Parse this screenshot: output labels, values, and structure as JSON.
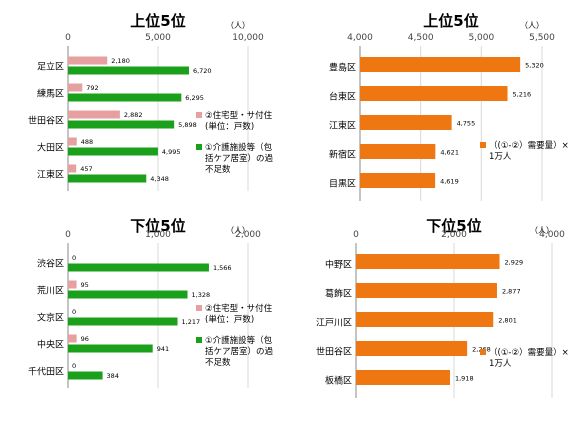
{
  "chart_data": [
    {
      "id": "tl",
      "type": "bar",
      "orientation": "horizontal",
      "title": "上位5位",
      "unit": "（人）",
      "ticks": [
        "0",
        "5,000",
        "10,000"
      ],
      "xlim": [
        0,
        10000
      ],
      "categories": [
        "足立区",
        "練馬区",
        "世田谷区",
        "大田区",
        "江東区"
      ],
      "series": [
        {
          "name": "②住宅型・サ付住(単位：戸数)",
          "color": "#e6a0a0",
          "values": [
            2180,
            792,
            2882,
            488,
            457
          ],
          "labels": [
            "2,180",
            "792",
            "2,882",
            "488",
            "457"
          ]
        },
        {
          "name": "①介護施設等（包括ケア居室）の過不足数",
          "color": "#1aa01a",
          "values": [
            6720,
            6295,
            5898,
            4995,
            4348
          ],
          "labels": [
            "6,720",
            "6,295",
            "5,898",
            "4,995",
            "4,348"
          ]
        }
      ],
      "legend_position": "right"
    },
    {
      "id": "tr",
      "type": "bar",
      "orientation": "horizontal",
      "title": "上位5位",
      "unit": "（人）",
      "ticks": [
        "4,000",
        "4,500",
        "5,000",
        "5,500"
      ],
      "xlim": [
        4000,
        5500
      ],
      "categories": [
        "豊島区",
        "台東区",
        "江東区",
        "新宿区",
        "目黒区"
      ],
      "series": [
        {
          "name": "（(①-②）需要量）×1万人",
          "color": "#ee7711",
          "values": [
            5320,
            5216,
            4755,
            4621,
            4619
          ],
          "labels": [
            "5,320",
            "5,216",
            "4,755",
            "4,621",
            "4,619"
          ]
        }
      ],
      "legend_position": "right"
    },
    {
      "id": "bl",
      "type": "bar",
      "orientation": "horizontal",
      "title": "下位5位",
      "unit": "（人）",
      "ticks": [
        "0",
        "1,000",
        "2,000"
      ],
      "xlim": [
        0,
        2000
      ],
      "categories": [
        "渋谷区",
        "荒川区",
        "文京区",
        "中央区",
        "千代田区"
      ],
      "series": [
        {
          "name": "②住宅型・サ付住(単位：戸数)",
          "color": "#e6a0a0",
          "values": [
            0,
            95,
            0,
            96,
            0
          ],
          "labels": [
            "0",
            "95",
            "0",
            "96",
            "0"
          ]
        },
        {
          "name": "①介護施設等（包括ケア居室）の過不足数",
          "color": "#1aa01a",
          "values": [
            1566,
            1328,
            1217,
            941,
            384
          ],
          "labels": [
            "1,566",
            "1,328",
            "1,217",
            "941",
            "384"
          ]
        }
      ],
      "legend_position": "right"
    },
    {
      "id": "br",
      "type": "bar",
      "orientation": "horizontal",
      "title": "下位5位",
      "unit": "（人）",
      "ticks": [
        "0",
        "2,000",
        "4,000"
      ],
      "xlim": [
        0,
        4000
      ],
      "categories": [
        "中野区",
        "葛飾区",
        "江戸川区",
        "世田谷区",
        "板橋区"
      ],
      "series": [
        {
          "name": "（(①-②）需要量）×1万人",
          "color": "#ee7711",
          "values": [
            2929,
            2877,
            2801,
            2268,
            1918
          ],
          "labels": [
            "2,929",
            "2,877",
            "2,801",
            "2,268",
            "1,918"
          ]
        }
      ],
      "legend_position": "right"
    }
  ]
}
